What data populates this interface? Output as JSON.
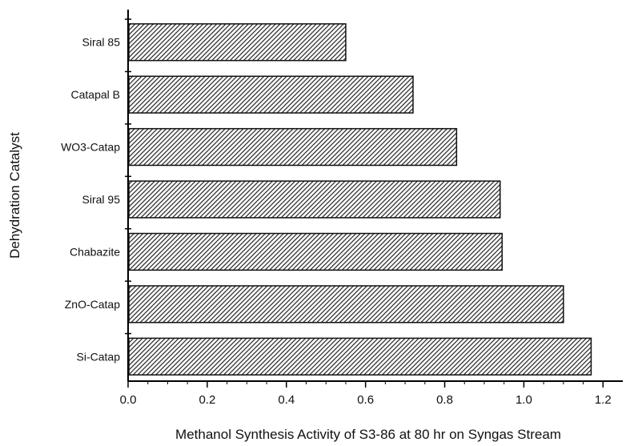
{
  "chart_data": {
    "type": "bar",
    "orientation": "horizontal",
    "categories": [
      "Siral 85",
      "Catapal B",
      "WO3-Catap",
      "Siral 95",
      "Chabazite",
      "ZnO-Catap",
      "Si-Catap"
    ],
    "values": [
      0.55,
      0.72,
      0.83,
      0.94,
      0.945,
      1.1,
      1.17
    ],
    "xlabel": "Methanol Synthesis Activity of S3-86 at 80 hr on Syngas Stream",
    "ylabel": "Dehydration Catalyst",
    "xlim": [
      0.0,
      1.25
    ],
    "xticks": [
      "0.0",
      "0.2",
      "0.4",
      "0.6",
      "0.8",
      "1.0",
      "1.2"
    ],
    "grid": false,
    "bar_fill": "diagonal-hatch",
    "colors": {
      "bar_stroke": "#111111",
      "hatch": "#222222",
      "axis": "#000000"
    }
  }
}
